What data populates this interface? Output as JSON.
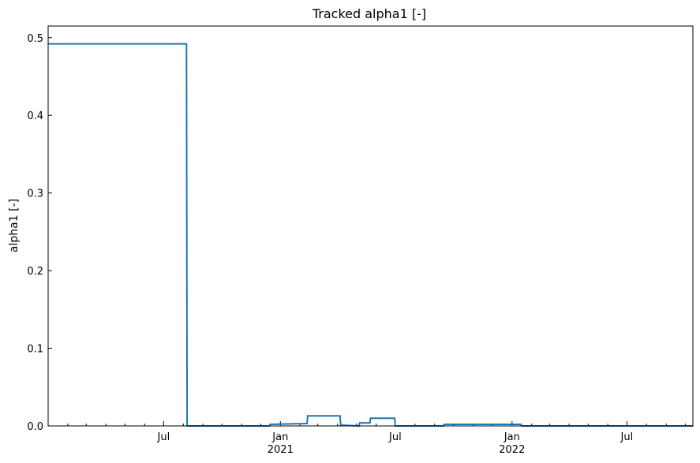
{
  "chart_data": {
    "type": "line",
    "title": "Tracked alpha1 [-]",
    "xlabel": "",
    "ylabel": "alpha1 [-]",
    "x_type": "date",
    "xlim": [
      "2020-01-01",
      "2022-10-13"
    ],
    "ylim": [
      0,
      0.515
    ],
    "grid": false,
    "legend": "none",
    "color": "#1f77b4",
    "yticks": [
      0.0,
      0.1,
      0.2,
      0.3,
      0.4,
      0.5
    ],
    "ytick_labels": [
      "0.0",
      "0.1",
      "0.2",
      "0.3",
      "0.4",
      "0.5"
    ],
    "xticks": [
      {
        "date": "2020-07-01",
        "label": "Jul",
        "sub": ""
      },
      {
        "date": "2021-01-01",
        "label": "Jan",
        "sub": "2021"
      },
      {
        "date": "2021-07-01",
        "label": "Jul",
        "sub": ""
      },
      {
        "date": "2022-01-01",
        "label": "Jan",
        "sub": "2022"
      },
      {
        "date": "2022-07-01",
        "label": "Jul",
        "sub": ""
      }
    ],
    "minor_xticks": [
      "2020-02-01",
      "2020-03-01",
      "2020-04-01",
      "2020-05-01",
      "2020-06-01",
      "2020-08-01",
      "2020-09-01",
      "2020-10-01",
      "2020-11-01",
      "2020-12-01",
      "2021-02-01",
      "2021-03-01",
      "2021-04-01",
      "2021-05-01",
      "2021-06-01",
      "2021-08-01",
      "2021-09-01",
      "2021-10-01",
      "2021-11-01",
      "2021-12-01",
      "2022-02-01",
      "2022-03-01",
      "2022-04-01",
      "2022-05-01",
      "2022-06-01",
      "2022-08-01",
      "2022-09-01",
      "2022-10-01"
    ],
    "series": [
      {
        "x": [
          "2020-01-01",
          "2020-08-06",
          "2020-08-07",
          "2020-12-15",
          "2020-12-16",
          "2021-02-12",
          "2021-02-13",
          "2021-04-05",
          "2021-04-06",
          "2021-05-05",
          "2021-05-06",
          "2021-05-22",
          "2021-05-23",
          "2021-06-30",
          "2021-07-01",
          "2021-09-15",
          "2021-09-16",
          "2022-01-15",
          "2022-01-16",
          "2022-10-13"
        ],
        "y": [
          0.492,
          0.492,
          0.0,
          0.0,
          0.002,
          0.003,
          0.013,
          0.013,
          0.001,
          0.0,
          0.004,
          0.004,
          0.01,
          0.01,
          0.0,
          0.0,
          0.002,
          0.002,
          0.0,
          0.0
        ]
      }
    ]
  }
}
